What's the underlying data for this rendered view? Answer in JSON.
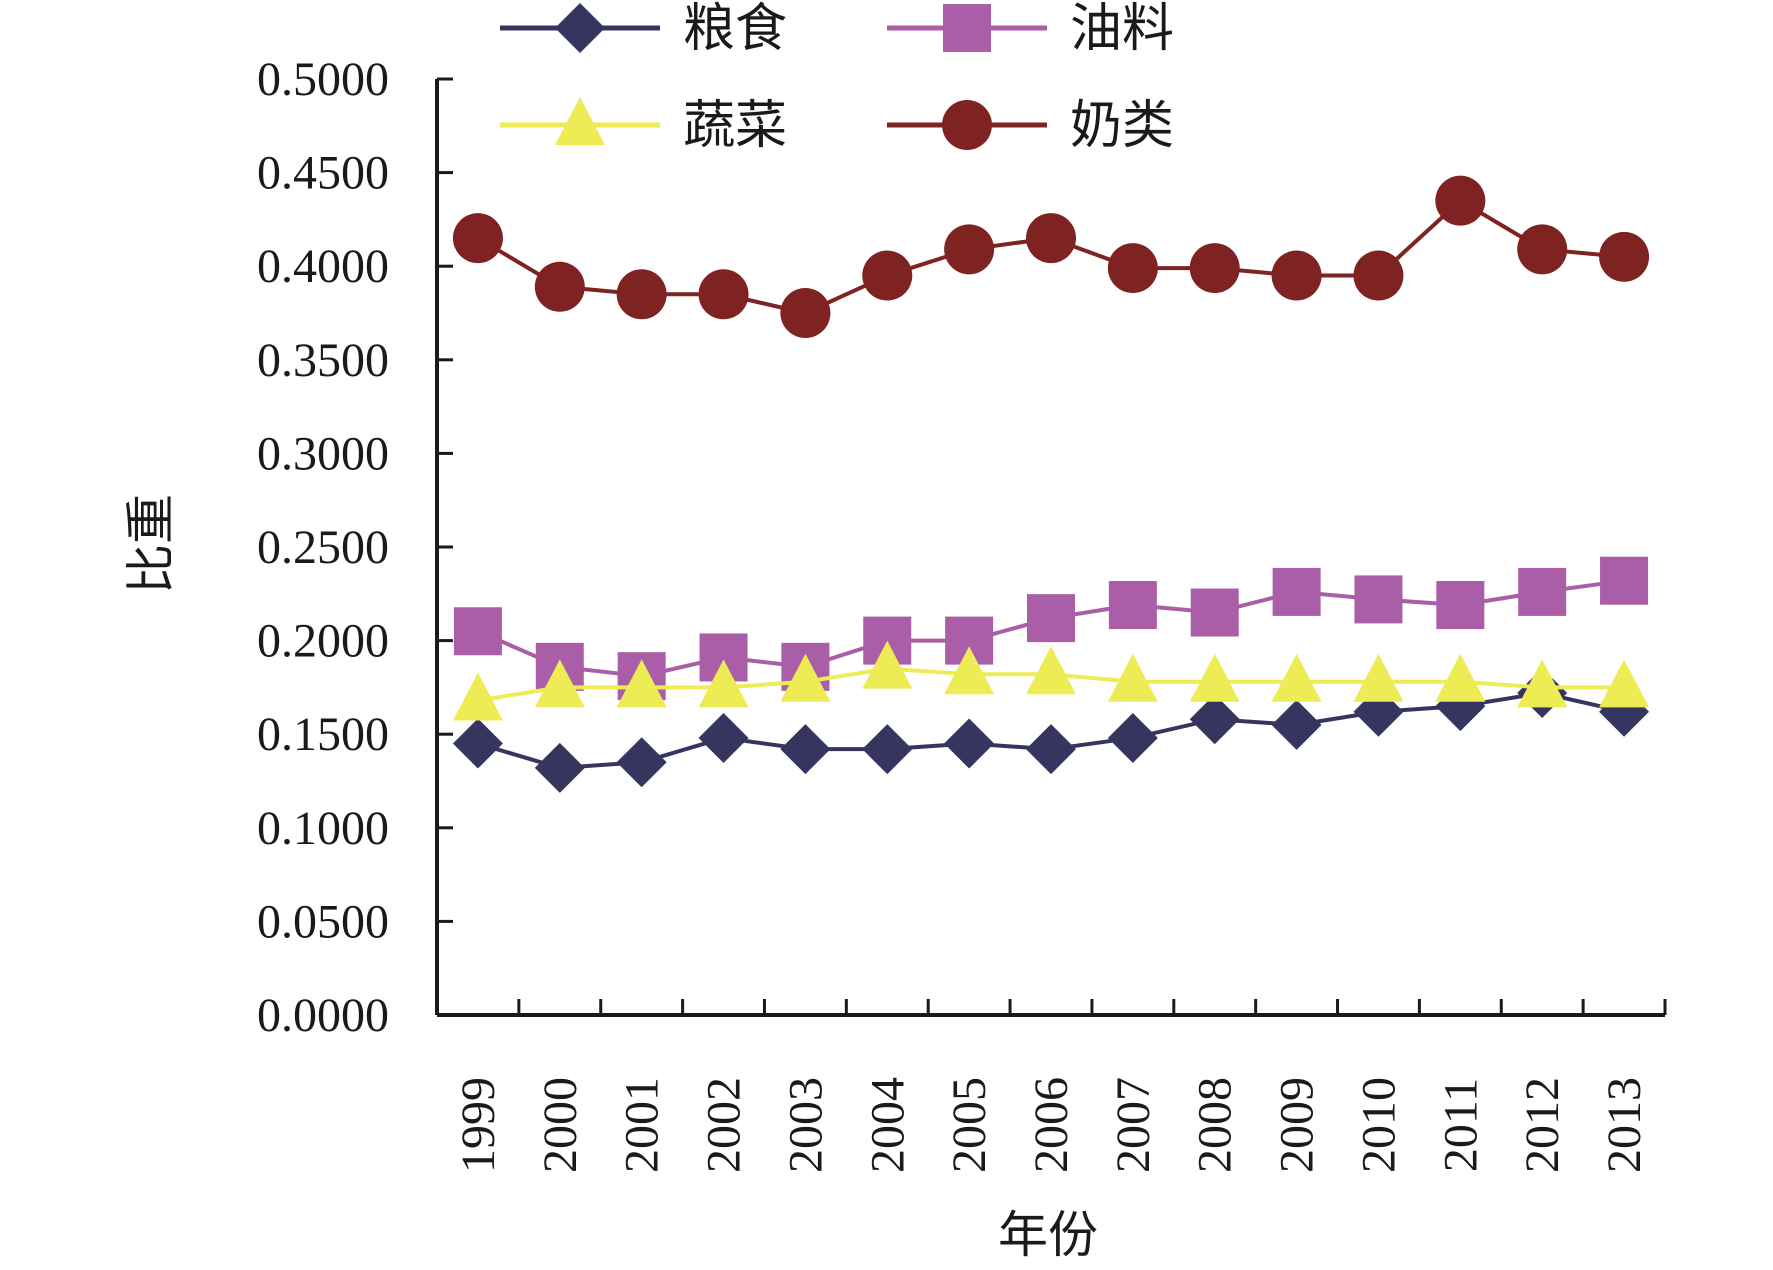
{
  "chart_data": {
    "type": "line",
    "title": "",
    "xlabel": "年份",
    "ylabel": "比重",
    "ylim": [
      0,
      0.5
    ],
    "ystep": 0.05,
    "grid": false,
    "legend_position": "top",
    "categories": [
      "1999",
      "2000",
      "2001",
      "2002",
      "2003",
      "2004",
      "2005",
      "2006",
      "2007",
      "2008",
      "2009",
      "2010",
      "2011",
      "2012",
      "2013"
    ],
    "yticks": [
      "0.0000",
      "0.0500",
      "0.1000",
      "0.1500",
      "0.2000",
      "0.2500",
      "0.3000",
      "0.3500",
      "0.4000",
      "0.4500",
      "0.5000"
    ],
    "series": [
      {
        "name": "粮食",
        "color": "#363560",
        "marker": "diamond",
        "values": [
          0.145,
          0.132,
          0.135,
          0.148,
          0.142,
          0.142,
          0.145,
          0.142,
          0.148,
          0.158,
          0.155,
          0.162,
          0.165,
          0.172,
          0.162
        ]
      },
      {
        "name": "油料",
        "color": "#a95ea7",
        "marker": "square",
        "values": [
          0.205,
          0.186,
          0.181,
          0.191,
          0.186,
          0.2,
          0.2,
          0.212,
          0.219,
          0.215,
          0.226,
          0.222,
          0.219,
          0.226,
          0.232
        ]
      },
      {
        "name": "蔬菜",
        "color": "#eeec55",
        "marker": "triangle",
        "values": [
          0.168,
          0.175,
          0.175,
          0.175,
          0.178,
          0.185,
          0.182,
          0.182,
          0.178,
          0.178,
          0.178,
          0.178,
          0.178,
          0.175,
          0.175
        ]
      },
      {
        "name": "奶类",
        "color": "#7f2222",
        "marker": "circle",
        "values": [
          0.415,
          0.389,
          0.385,
          0.385,
          0.375,
          0.395,
          0.409,
          0.415,
          0.399,
          0.399,
          0.395,
          0.395,
          0.435,
          0.409,
          0.405
        ]
      }
    ]
  }
}
